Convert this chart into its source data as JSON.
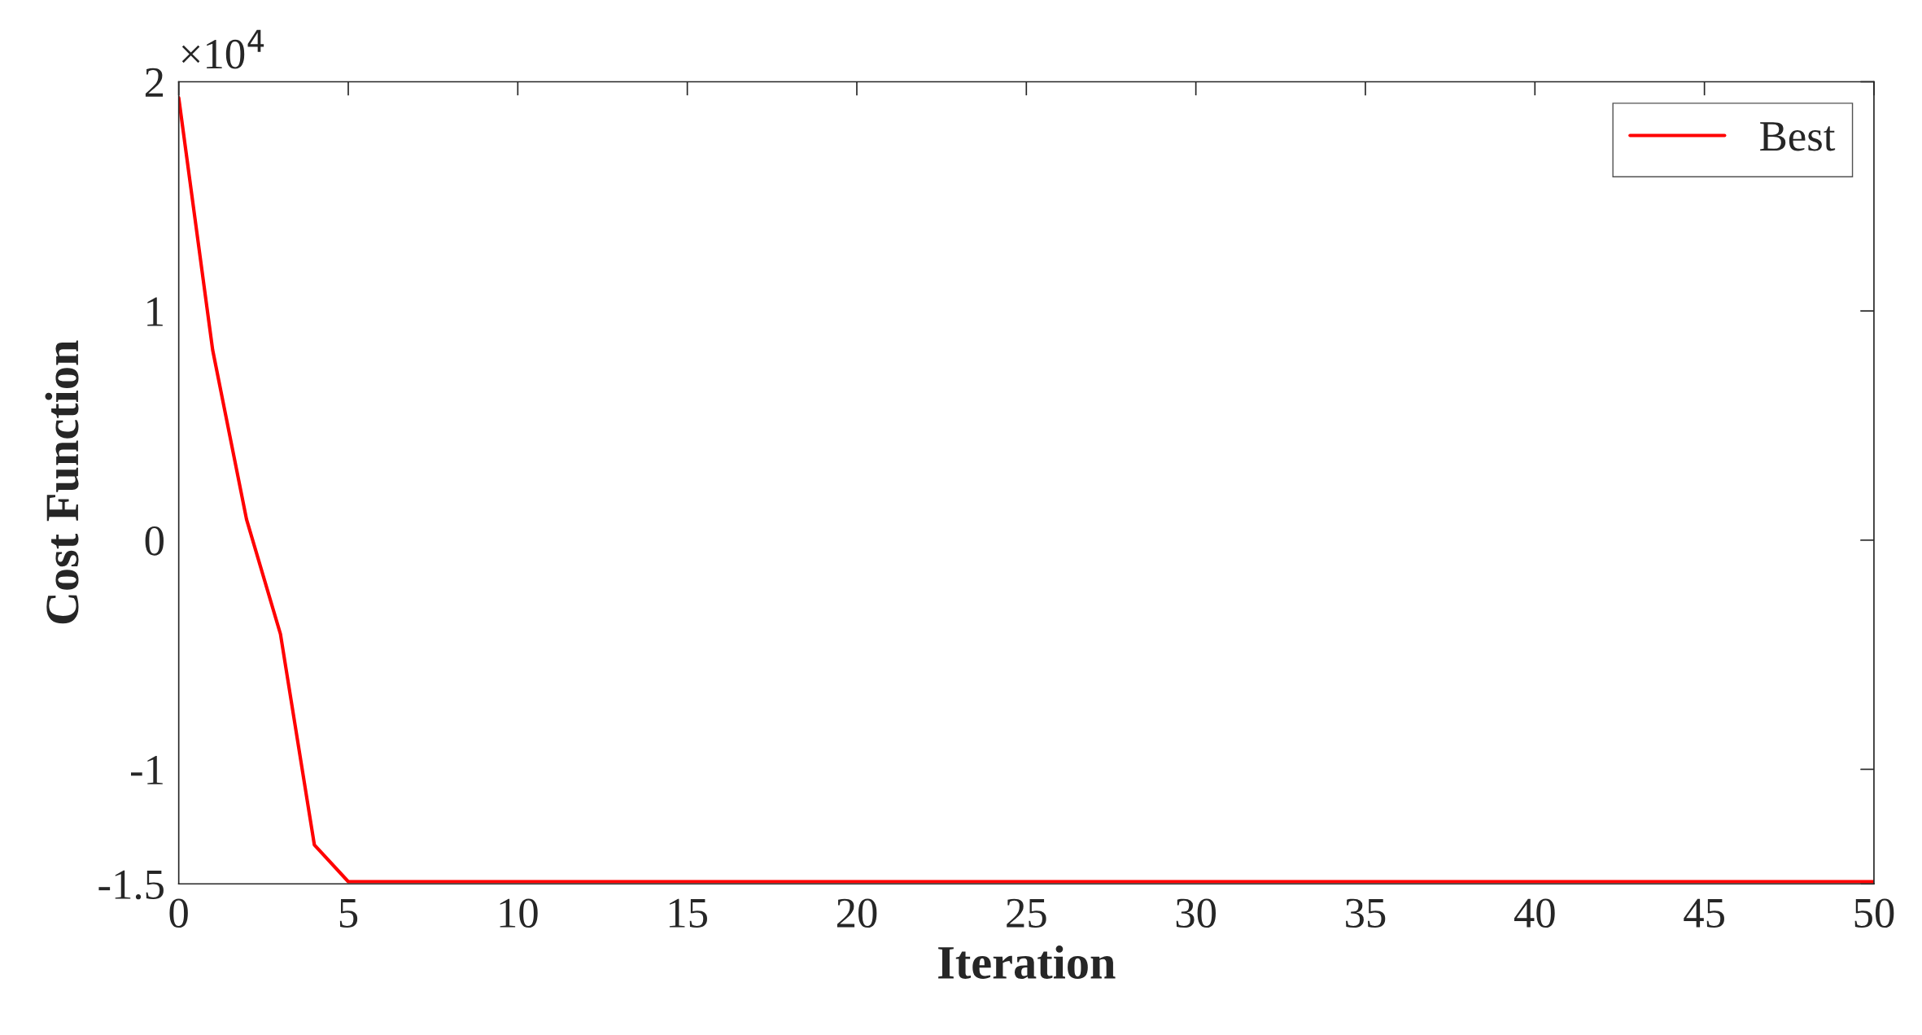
{
  "chart_data": {
    "type": "line",
    "xlabel": "Iteration",
    "ylabel": "Cost Function",
    "x": [
      0,
      1,
      2,
      3,
      4,
      5,
      50
    ],
    "series": [
      {
        "name": "Best",
        "color": "#ff0000",
        "values": [
          1.93,
          0.83,
          0.09,
          -0.41,
          -1.33,
          -1.49,
          -1.49
        ]
      }
    ],
    "xlim": [
      0,
      50
    ],
    "xticks": [
      0,
      5,
      10,
      15,
      20,
      25,
      30,
      35,
      40,
      45,
      50
    ],
    "ylim": [
      -1.5,
      2
    ],
    "yticks": [
      -1.5,
      -1,
      0,
      1,
      2
    ],
    "annotations": [
      "×10$^{4}$"
    ],
    "legend": "top right",
    "grid": false,
    "marker": "none",
    "line_style": "solid"
  }
}
